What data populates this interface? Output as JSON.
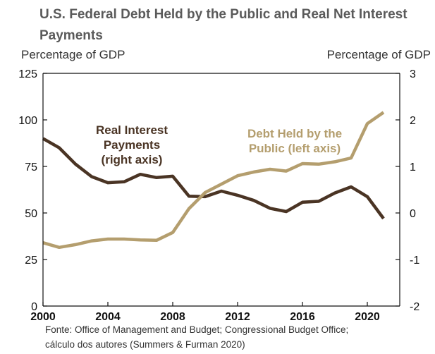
{
  "title": "U.S. Federal Debt Held by the Public and Real Net Interest Payments",
  "source_line1": "Fonte: Office of Management and Budget; Congressional Budget Office;",
  "source_line2": "cálculo dos autores (Summers & Furman 2020)",
  "colors": {
    "debt": "#b49e6e",
    "interest": "#4a3424",
    "axes": "#111111",
    "text": "#5a5a5a"
  },
  "chart_data": {
    "type": "line",
    "title": "U.S. Federal Debt Held by the Public and Real Net Interest Payments",
    "left_axis": {
      "label": "Percentage of GDP",
      "ylim": [
        0,
        125
      ],
      "ticks": [
        "0",
        "25",
        "50",
        "75",
        "100",
        "125"
      ]
    },
    "right_axis": {
      "label": "Percentage of GDP",
      "ylim": [
        -2,
        3
      ],
      "ticks": [
        "-2",
        "-1",
        "0",
        "1",
        "2",
        "3"
      ]
    },
    "x_axis": {
      "xlim": [
        2000,
        2022
      ],
      "ticks": [
        "2000",
        "2004",
        "2008",
        "2012",
        "2016",
        "2020"
      ]
    },
    "grid": false,
    "series": [
      {
        "name": "Real Interest Payments (right axis)",
        "label_lines": [
          "Real Interest",
          "Payments",
          "(right axis)"
        ],
        "axis": "right",
        "x": [
          2000,
          2001,
          2002,
          2003,
          2004,
          2005,
          2006,
          2007,
          2008,
          2009,
          2010,
          2011,
          2012,
          2013,
          2014,
          2015,
          2016,
          2017,
          2018,
          2019,
          2020,
          2021
        ],
        "values": [
          1.6,
          1.4,
          1.05,
          0.78,
          0.65,
          0.67,
          0.83,
          0.76,
          0.79,
          0.36,
          0.35,
          0.47,
          0.38,
          0.27,
          0.1,
          0.03,
          0.23,
          0.25,
          0.43,
          0.56,
          0.35,
          -0.12
        ]
      },
      {
        "name": "Debt Held by the Public (left axis)",
        "label_lines": [
          "Debt Held by the",
          "Public (left axis)"
        ],
        "axis": "left",
        "x": [
          2000,
          2001,
          2002,
          2003,
          2004,
          2005,
          2006,
          2007,
          2008,
          2009,
          2010,
          2011,
          2012,
          2013,
          2014,
          2015,
          2016,
          2017,
          2018,
          2019,
          2020,
          2021
        ],
        "values": [
          34,
          31.5,
          33,
          35,
          36,
          36,
          35.5,
          35.3,
          39.5,
          52.3,
          61,
          65.5,
          70,
          72,
          73.5,
          72.5,
          76.5,
          76.2,
          77.5,
          79.5,
          98,
          104
        ]
      }
    ]
  }
}
